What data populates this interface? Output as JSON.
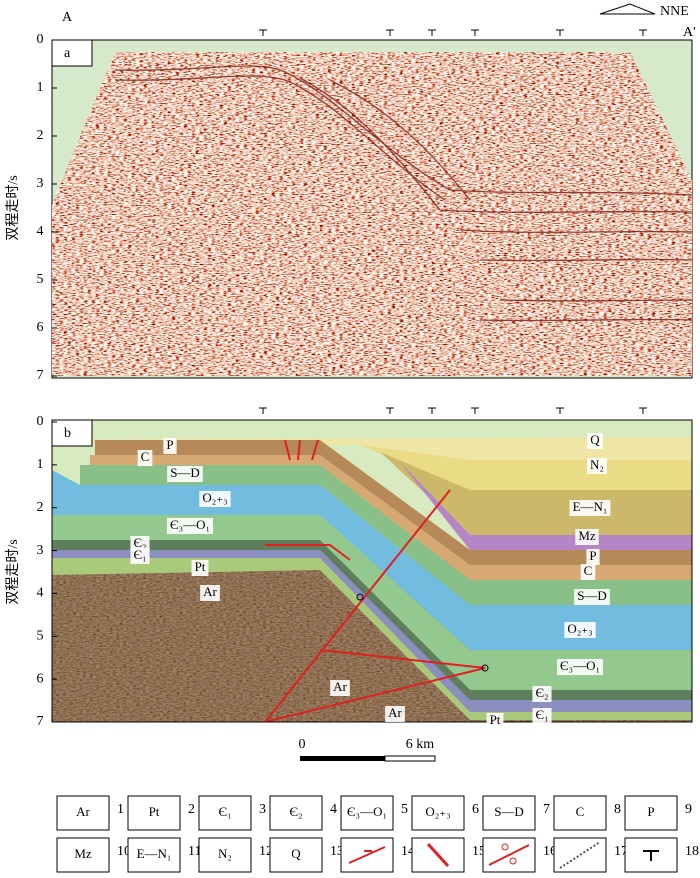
{
  "header": {
    "left_end": "A",
    "right_end": "A'",
    "direction": "NNE"
  },
  "panels": [
    {
      "tag": "a",
      "y_label": "双程走时/s",
      "yticks": [
        0,
        1,
        2,
        3,
        4,
        5,
        6,
        7
      ]
    },
    {
      "tag": "b",
      "y_label": "双程走时/s",
      "yticks": [
        0,
        1,
        2,
        3,
        4,
        5,
        6,
        7
      ]
    }
  ],
  "section_labels": [
    "P",
    "C",
    "S—D",
    "O₂₊₃",
    "Є₃—O₁",
    "Є₂",
    "Є₁",
    "Pt",
    "Ar",
    "Q",
    "N₂",
    "E—N₁",
    "Mz",
    "P",
    "C",
    "S—D",
    "O₂₊₃",
    "Є₃—O₁",
    "Є₂",
    "Є₁",
    "Pt",
    "Ar",
    "Ar"
  ],
  "scale_bar": {
    "start": "0",
    "end": "6 km"
  },
  "legend": [
    {
      "label": "Ar",
      "number": 1
    },
    {
      "label": "Pt",
      "number": 2
    },
    {
      "label": "Є₁",
      "number": 3
    },
    {
      "label": "Є₂",
      "number": 4
    },
    {
      "label": "Є₃—O₁",
      "number": 5
    },
    {
      "label": "O₂₊₃",
      "number": 6
    },
    {
      "label": "S—D",
      "number": 7
    },
    {
      "label": "C",
      "number": 8
    },
    {
      "label": "P",
      "number": 9
    },
    {
      "label": "Mz",
      "number": 10
    },
    {
      "label": "E—N₁",
      "number": 11
    },
    {
      "label": "N₂",
      "number": 12
    },
    {
      "label": "Q",
      "number": 13
    },
    {
      "number": 14
    },
    {
      "number": 15
    },
    {
      "number": 16
    },
    {
      "number": 17
    },
    {
      "number": 18
    }
  ]
}
